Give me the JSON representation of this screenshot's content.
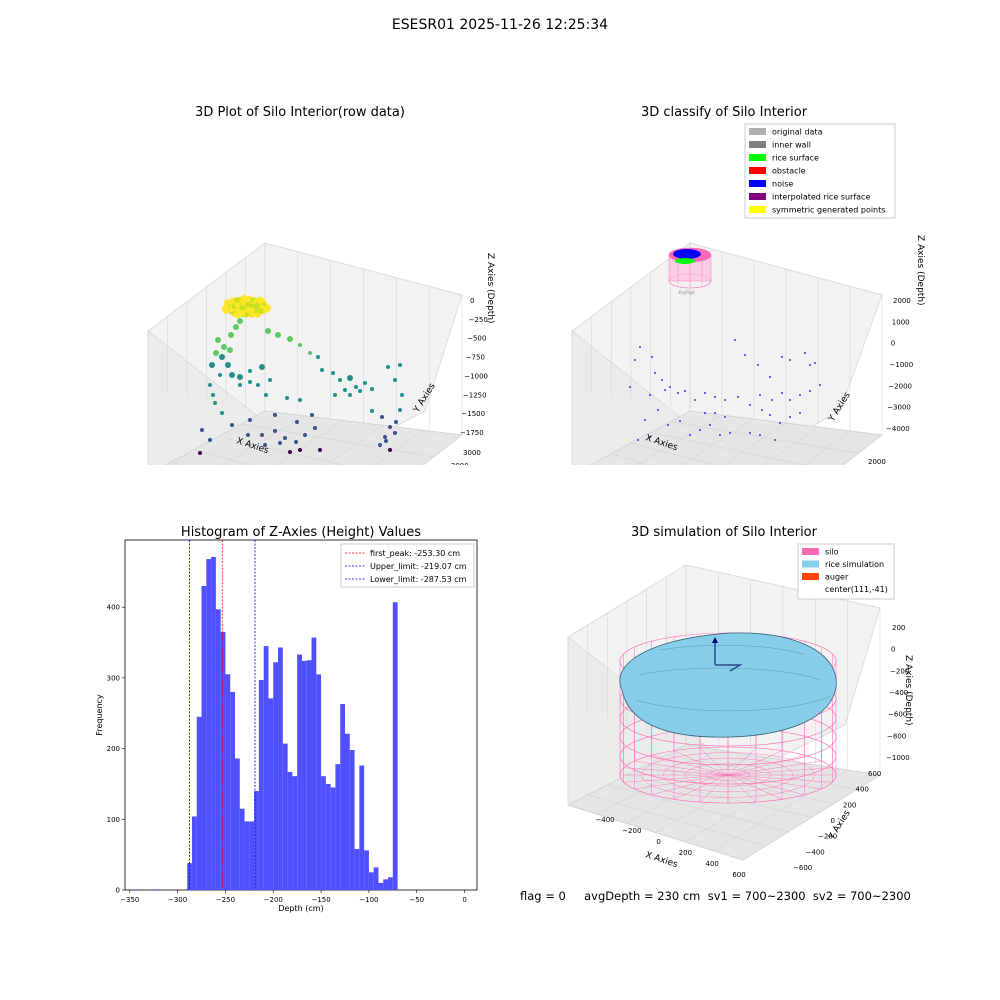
{
  "figure": {
    "suptitle": "ESESR01 2025-11-26 12:25:34",
    "footer": "flag = 0     avgDepth = 230 cm  sv1 = 700~2300  sv2 = 700~2300"
  },
  "chart_data": [
    {
      "type": "scatter",
      "title": "3D Plot of Silo Interior(row data)",
      "xlabel": "X Axies",
      "ylabel": "Y Axies",
      "zlabel": "Z Axies (Depth)",
      "x_ticks": [
        "0",
        "1000",
        "2000",
        "3000",
        "4000"
      ],
      "y_ticks": [
        "3000",
        "2000",
        "1000",
        "0",
        "−1000",
        "−2000",
        "−3000",
        "−4000"
      ],
      "z_ticks": [
        "0",
        "−250",
        "−500",
        "−750",
        "−1000",
        "−1250",
        "−1500",
        "−1750"
      ],
      "xlim": [
        -500,
        4600
      ],
      "ylim": [
        -4200,
        3300
      ],
      "zlim": [
        -1900,
        100
      ],
      "colormap": "viridis",
      "colors": [
        "#440154",
        "#3b528b",
        "#21918c",
        "#5ec962",
        "#fde725"
      ]
    },
    {
      "type": "scatter",
      "title": "3D classify of Silo Interior",
      "xlabel": "X Axies",
      "ylabel": "Y Axies",
      "zlabel": "Z Axies (Depth)",
      "x_ticks": [
        "−1000",
        "0",
        "1000",
        "2000",
        "3000",
        "4000",
        "5000"
      ],
      "y_ticks": [
        "2000",
        "1000",
        "0",
        "−1000",
        "−2000",
        "−3000",
        "−4000"
      ],
      "z_ticks": [
        "2000",
        "1000",
        "0",
        "−1000",
        "−2000",
        "−3000",
        "−4000"
      ],
      "legend_position": "top-right",
      "legend": [
        {
          "label": "original data",
          "color": "#b0b0b0"
        },
        {
          "label": "inner wall",
          "color": "#808080"
        },
        {
          "label": "rice surface",
          "color": "#00ff00"
        },
        {
          "label": "obstacle",
          "color": "#ff0000"
        },
        {
          "label": "noise",
          "color": "#0000ff"
        },
        {
          "label": "interpolated rice surface",
          "color": "#800080"
        },
        {
          "label": "symmetric generated points",
          "color": "#ffff00"
        }
      ]
    },
    {
      "type": "bar",
      "title": "Histogram of Z-Axies (Height) Values",
      "xlabel": "Depth (cm)",
      "ylabel": "Frequency",
      "xlim": [
        -355,
        13
      ],
      "ylim": [
        0,
        495
      ],
      "bin_width": 5,
      "bar_color": "#5050ff",
      "x_ticks": [
        -350,
        -300,
        -250,
        -200,
        -150,
        -100,
        -50,
        0
      ],
      "y_ticks": [
        0,
        100,
        200,
        300,
        400
      ],
      "bins": [
        [
          -345,
          1
        ],
        [
          -325,
          1
        ],
        [
          -290,
          38
        ],
        [
          -285,
          104
        ],
        [
          -280,
          245
        ],
        [
          -275,
          430
        ],
        [
          -270,
          468
        ],
        [
          -265,
          471
        ],
        [
          -260,
          397
        ],
        [
          -255,
          365
        ],
        [
          -250,
          305
        ],
        [
          -245,
          280
        ],
        [
          -240,
          186
        ],
        [
          -235,
          115
        ],
        [
          -230,
          97
        ],
        [
          -225,
          97
        ],
        [
          -220,
          140
        ],
        [
          -215,
          297
        ],
        [
          -210,
          345
        ],
        [
          -205,
          271
        ],
        [
          -200,
          322
        ],
        [
          -195,
          343
        ],
        [
          -190,
          207
        ],
        [
          -185,
          167
        ],
        [
          -180,
          161
        ],
        [
          -175,
          333
        ],
        [
          -170,
          324
        ],
        [
          -165,
          325
        ],
        [
          -160,
          357
        ],
        [
          -155,
          305
        ],
        [
          -150,
          161
        ],
        [
          -145,
          150
        ],
        [
          -140,
          145
        ],
        [
          -135,
          178
        ],
        [
          -130,
          263
        ],
        [
          -125,
          221
        ],
        [
          -120,
          198
        ],
        [
          -115,
          58
        ],
        [
          -110,
          176
        ],
        [
          -105,
          56
        ],
        [
          -100,
          25
        ],
        [
          -95,
          32
        ],
        [
          -90,
          10
        ],
        [
          -85,
          15
        ],
        [
          -80,
          18
        ],
        [
          -75,
          407
        ]
      ],
      "vlines": [
        {
          "label": "first_peak: -253.30 cm",
          "x": -253.3,
          "color": "#ff0000"
        },
        {
          "label": "Upper_limit: -219.07 cm",
          "x": -219.07,
          "color": "#0000ff"
        },
        {
          "label": "Lower_limit: -287.53 cm",
          "x": -287.53,
          "color": "#0000ff"
        }
      ],
      "legend_position": "top-right"
    },
    {
      "type": "surface",
      "title": "3D simulation of Silo Interior",
      "xlabel": "X Axies",
      "ylabel": "Y Axies",
      "zlabel": "Z Axies (Depth)",
      "x_ticks": [
        "−400",
        "−200",
        "0",
        "200",
        "400",
        "600"
      ],
      "y_ticks": [
        "600",
        "400",
        "200",
        "0",
        "−200",
        "−400",
        "−600"
      ],
      "z_ticks": [
        "200",
        "0",
        "−200",
        "−400",
        "−600",
        "−800",
        "−1000"
      ],
      "legend_position": "top-right",
      "legend": [
        {
          "label": "silo",
          "color": "#ff69b4"
        },
        {
          "label": "rice simulation",
          "color": "#87ceeb"
        },
        {
          "label": "auger",
          "color": "#ff4500"
        },
        {
          "label": "center(111,-41)",
          "color": ""
        }
      ]
    }
  ]
}
